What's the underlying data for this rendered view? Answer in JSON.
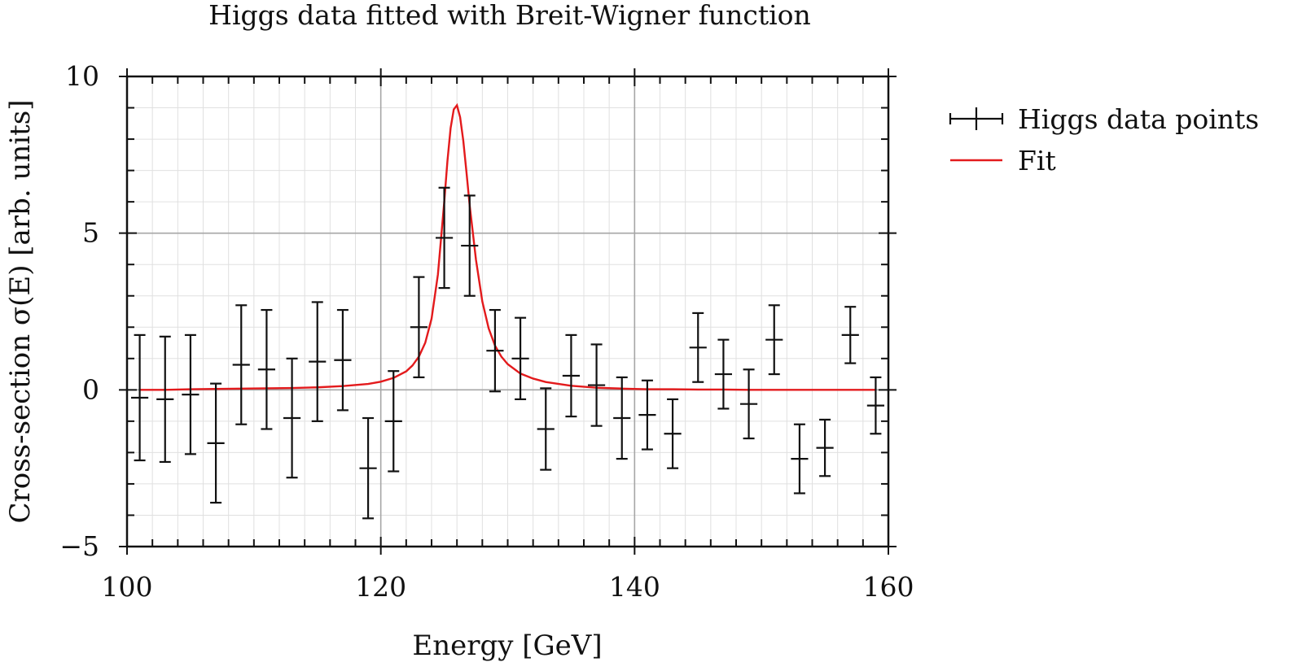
{
  "chart_data": {
    "type": "scatter",
    "title": "Higgs data fitted with Breit-Wigner function",
    "xlabel": "Energy [GeV]",
    "ylabel": "Cross-section σ(E) [arb. units]",
    "xlim": [
      100,
      160
    ],
    "ylim": [
      -5,
      10
    ],
    "x_ticks": [
      100,
      120,
      140,
      160
    ],
    "x_tick_labels": [
      "100",
      "120",
      "140",
      "160"
    ],
    "y_ticks": [
      -5,
      0,
      5,
      10
    ],
    "y_tick_labels": [
      "−5",
      "0",
      "5",
      "10"
    ],
    "x_minor_step": 2,
    "y_minor_step": 1,
    "grid": true,
    "legend": "outside-right",
    "series": [
      {
        "name": "Higgs data points",
        "kind": "errorbar",
        "color": "#111111",
        "x_err": 1,
        "points": [
          {
            "x": 101,
            "y": -0.25,
            "err": 2.0
          },
          {
            "x": 103,
            "y": -0.3,
            "err": 2.0
          },
          {
            "x": 105,
            "y": -0.15,
            "err": 1.9
          },
          {
            "x": 107,
            "y": -1.7,
            "err": 1.9
          },
          {
            "x": 109,
            "y": 0.8,
            "err": 1.9
          },
          {
            "x": 111,
            "y": 0.65,
            "err": 1.9
          },
          {
            "x": 113,
            "y": -0.9,
            "err": 1.9
          },
          {
            "x": 115,
            "y": 0.9,
            "err": 1.9
          },
          {
            "x": 117,
            "y": 0.95,
            "err": 1.6
          },
          {
            "x": 119,
            "y": -2.5,
            "err": 1.6
          },
          {
            "x": 121,
            "y": -1.0,
            "err": 1.6
          },
          {
            "x": 123,
            "y": 2.0,
            "err": 1.6
          },
          {
            "x": 125,
            "y": 4.85,
            "err": 1.6
          },
          {
            "x": 127,
            "y": 4.6,
            "err": 1.6
          },
          {
            "x": 129,
            "y": 1.25,
            "err": 1.3
          },
          {
            "x": 131,
            "y": 1.0,
            "err": 1.3
          },
          {
            "x": 133,
            "y": -1.25,
            "err": 1.3
          },
          {
            "x": 135,
            "y": 0.45,
            "err": 1.3
          },
          {
            "x": 137,
            "y": 0.15,
            "err": 1.3
          },
          {
            "x": 139,
            "y": -0.9,
            "err": 1.3
          },
          {
            "x": 141,
            "y": -0.8,
            "err": 1.1
          },
          {
            "x": 143,
            "y": -1.4,
            "err": 1.1
          },
          {
            "x": 145,
            "y": 1.35,
            "err": 1.1
          },
          {
            "x": 147,
            "y": 0.5,
            "err": 1.1
          },
          {
            "x": 149,
            "y": -0.45,
            "err": 1.1
          },
          {
            "x": 151,
            "y": 1.6,
            "err": 1.1
          },
          {
            "x": 153,
            "y": -2.2,
            "err": 1.1
          },
          {
            "x": 155,
            "y": -1.85,
            "err": 0.9
          },
          {
            "x": 157,
            "y": 1.75,
            "err": 0.9
          },
          {
            "x": 159,
            "y": -0.5,
            "err": 0.9
          }
        ]
      },
      {
        "name": "Fit",
        "kind": "line",
        "color": "#e31a1c",
        "x": [
          101,
          103,
          105,
          107,
          109,
          111,
          113,
          115,
          117,
          119,
          120,
          121,
          122,
          122.5,
          123,
          123.5,
          124,
          124.5,
          125,
          125.25,
          125.5,
          125.75,
          126,
          126.25,
          126.5,
          126.75,
          127,
          127.5,
          128,
          128.5,
          129,
          129.5,
          130,
          131,
          132,
          133,
          135,
          137,
          139,
          141,
          143,
          145,
          147,
          149,
          151,
          153,
          155,
          157,
          159
        ],
        "y": [
          0.0,
          0.0,
          0.02,
          0.03,
          0.04,
          0.05,
          0.06,
          0.08,
          0.12,
          0.19,
          0.26,
          0.38,
          0.59,
          0.78,
          1.06,
          1.5,
          2.27,
          3.68,
          6.0,
          7.3,
          8.35,
          8.95,
          9.08,
          8.7,
          7.95,
          6.95,
          5.9,
          4.15,
          2.82,
          1.96,
          1.41,
          1.06,
          0.82,
          0.52,
          0.36,
          0.25,
          0.13,
          0.07,
          0.04,
          0.02,
          0.02,
          0.01,
          0.01,
          0.0,
          0.0,
          0.0,
          0.0,
          0.0,
          0.0
        ]
      }
    ]
  }
}
